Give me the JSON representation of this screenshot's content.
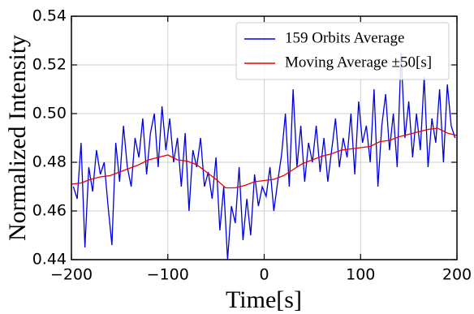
{
  "chart_data": {
    "type": "line",
    "xlabel": "Time[s]",
    "ylabel": "Normalized Intensity",
    "xlim": [
      -200,
      200
    ],
    "ylim": [
      0.44,
      0.54
    ],
    "xticks": [
      {
        "value": -200,
        "label": "−200"
      },
      {
        "value": -100,
        "label": "−100"
      },
      0,
      100,
      200
    ],
    "yticks": [
      0.44,
      0.46,
      0.48,
      {
        "value": 0.5,
        "label": "0.50"
      },
      0.52,
      0.54
    ],
    "grid": true,
    "legend": "upper right",
    "series": [
      {
        "name": "159 Orbits Average",
        "color": "#0000dd",
        "x": [
          -198,
          -194,
          -190,
          -186,
          -182,
          -178,
          -174,
          -170,
          -166,
          -162,
          -158,
          -154,
          -150,
          -146,
          -142,
          -138,
          -134,
          -130,
          -126,
          -122,
          -118,
          -114,
          -110,
          -106,
          -102,
          -98,
          -94,
          -90,
          -86,
          -82,
          -78,
          -74,
          -70,
          -66,
          -62,
          -58,
          -54,
          -50,
          -46,
          -42,
          -38,
          -34,
          -30,
          -26,
          -22,
          -18,
          -14,
          -10,
          -6,
          -2,
          2,
          6,
          10,
          14,
          18,
          22,
          26,
          30,
          34,
          38,
          42,
          46,
          50,
          54,
          58,
          62,
          66,
          70,
          74,
          78,
          82,
          86,
          90,
          94,
          98,
          102,
          106,
          110,
          114,
          118,
          122,
          126,
          130,
          134,
          138,
          142,
          146,
          150,
          154,
          158,
          162,
          166,
          170,
          174,
          178,
          182,
          186,
          190,
          194,
          198
        ],
        "values": [
          0.47,
          0.465,
          0.488,
          0.445,
          0.478,
          0.468,
          0.485,
          0.475,
          0.48,
          0.462,
          0.446,
          0.488,
          0.472,
          0.495,
          0.478,
          0.47,
          0.49,
          0.482,
          0.498,
          0.475,
          0.492,
          0.5,
          0.478,
          0.503,
          0.485,
          0.498,
          0.48,
          0.49,
          0.47,
          0.492,
          0.46,
          0.485,
          0.478,
          0.49,
          0.47,
          0.476,
          0.465,
          0.482,
          0.452,
          0.47,
          0.44,
          0.462,
          0.455,
          0.478,
          0.448,
          0.465,
          0.45,
          0.475,
          0.462,
          0.47,
          0.466,
          0.478,
          0.46,
          0.472,
          0.483,
          0.5,
          0.47,
          0.51,
          0.478,
          0.495,
          0.472,
          0.488,
          0.48,
          0.495,
          0.476,
          0.49,
          0.472,
          0.485,
          0.498,
          0.478,
          0.49,
          0.482,
          0.5,
          0.475,
          0.505,
          0.488,
          0.495,
          0.48,
          0.51,
          0.47,
          0.495,
          0.508,
          0.485,
          0.5,
          0.478,
          0.525,
          0.49,
          0.505,
          0.482,
          0.5,
          0.485,
          0.515,
          0.478,
          0.498,
          0.488,
          0.51,
          0.48,
          0.512,
          0.495,
          0.49
        ]
      },
      {
        "name": "Moving Average ±50[s]",
        "color": "#ee0000",
        "x": [
          -200,
          -190,
          -180,
          -170,
          -160,
          -150,
          -140,
          -130,
          -120,
          -110,
          -100,
          -90,
          -80,
          -70,
          -60,
          -50,
          -40,
          -30,
          -20,
          -10,
          0,
          10,
          20,
          30,
          40,
          50,
          60,
          70,
          80,
          90,
          100,
          110,
          120,
          130,
          140,
          150,
          160,
          170,
          180,
          190,
          200
        ],
        "values": [
          0.471,
          0.4715,
          0.473,
          0.474,
          0.4745,
          0.476,
          0.4775,
          0.479,
          0.481,
          0.482,
          0.483,
          0.481,
          0.4805,
          0.479,
          0.476,
          0.473,
          0.4695,
          0.4695,
          0.4705,
          0.472,
          0.4725,
          0.473,
          0.4745,
          0.477,
          0.4795,
          0.481,
          0.4825,
          0.4835,
          0.485,
          0.4855,
          0.486,
          0.4865,
          0.4885,
          0.489,
          0.4905,
          0.4915,
          0.4925,
          0.4935,
          0.494,
          0.492,
          0.491
        ]
      }
    ]
  }
}
